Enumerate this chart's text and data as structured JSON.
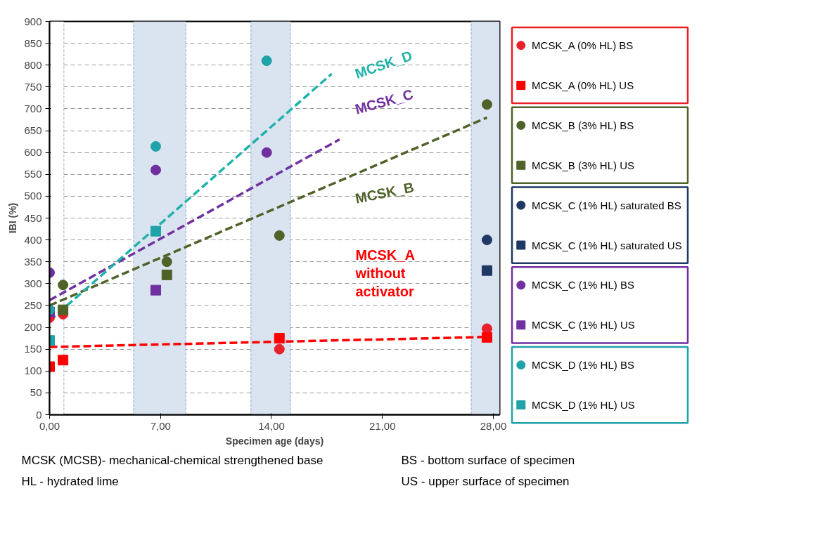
{
  "chart_data": {
    "type": "scatter",
    "xlabel": "Specimen age (days)",
    "ylabel": "IBI (%)",
    "xlim": [
      0,
      28.4
    ],
    "ylim": [
      0,
      900
    ],
    "xticks": [
      {
        "value": 0,
        "label": "0,00"
      },
      {
        "value": 7,
        "label": "7,00"
      },
      {
        "value": 14,
        "label": "14,00"
      },
      {
        "value": 21,
        "label": "21,00"
      },
      {
        "value": 28,
        "label": "28,00"
      }
    ],
    "yticks": [
      0,
      50,
      100,
      150,
      200,
      250,
      300,
      350,
      400,
      450,
      500,
      550,
      600,
      650,
      700,
      750,
      800,
      850,
      900
    ],
    "grid": "y",
    "legend": "right",
    "bands": [
      {
        "axis": "x",
        "from": 0,
        "to": 0.9,
        "label": null,
        "color": "#ffffff"
      },
      {
        "axis": "x",
        "from": 5.3,
        "to": 8.6,
        "label": null,
        "color": "#dae3f0"
      },
      {
        "axis": "x",
        "from": 12.7,
        "to": 15.2,
        "label": null,
        "color": "#dae3f0"
      },
      {
        "axis": "x",
        "from": 26.6,
        "to": 28.4,
        "label": null,
        "color": "#dae3f0"
      }
    ],
    "series": [
      {
        "type": "line",
        "color": "#ff0000",
        "line_style": "dashed",
        "x": [
          0,
          27.6
        ],
        "values": [
          155,
          178
        ]
      },
      {
        "type": "line",
        "color": "#4f6228",
        "line_style": "dashed",
        "x": [
          0,
          27.6
        ],
        "values": [
          250,
          680
        ]
      },
      {
        "type": "line",
        "color": "#7030a0",
        "line_style": "dashed",
        "x": [
          0,
          18.3
        ],
        "values": [
          262,
          630
        ]
      },
      {
        "type": "line",
        "color": "#20b2aa",
        "line_style": "dashed",
        "x": [
          0,
          17.8
        ],
        "values": [
          215,
          780
        ]
      },
      {
        "name": "MCSK_A (0% HL) BS",
        "color": "#e8202a",
        "marker": "circle",
        "x": [
          0,
          0.85,
          14.5,
          27.6
        ],
        "values": [
          222,
          230,
          150,
          197
        ]
      },
      {
        "name": "MCSK_A (0% HL) US",
        "color": "#ff0000",
        "marker": "square",
        "x": [
          0,
          0.85,
          14.5,
          27.6
        ],
        "values": [
          110,
          125,
          175,
          177
        ]
      },
      {
        "name": "MCSK_B (3% HL) BS",
        "color": "#4f6228",
        "marker": "circle",
        "x": [
          0.85,
          7.4,
          14.5,
          27.6
        ],
        "values": [
          297,
          350,
          410,
          710
        ]
      },
      {
        "name": "MCSK_B (3% HL) US",
        "color": "#4f6228",
        "marker": "square",
        "x": [
          0.85,
          7.4
        ],
        "values": [
          240,
          320
        ]
      },
      {
        "name": "MCSK_C (1% HL) saturated BS",
        "color": "#1f3864",
        "marker": "circle",
        "x": [
          27.6
        ],
        "values": [
          400
        ]
      },
      {
        "name": "MCSK_C (1% HL) saturated US",
        "color": "#1f3864",
        "marker": "square",
        "x": [
          27.6
        ],
        "values": [
          330
        ]
      },
      {
        "name": "MCSK_C (1% HL) BS",
        "color": "#7030a0",
        "marker": "circle",
        "x": [
          0,
          6.7,
          13.7
        ],
        "values": [
          325,
          560,
          600
        ]
      },
      {
        "name": "MCSK_C (1% HL) US",
        "color": "#7030a0",
        "marker": "square",
        "x": [
          0,
          6.7
        ],
        "values": [
          235,
          285
        ]
      },
      {
        "name": "MCSK_D (1% HL) BS",
        "color": "#1fa2a8",
        "marker": "circle",
        "x": [
          0,
          6.7,
          13.7
        ],
        "values": [
          240,
          614,
          810
        ]
      },
      {
        "name": "MCSK_D (1% HL) US",
        "color": "#1fa2a8",
        "marker": "square",
        "x": [
          0,
          6.7
        ],
        "values": [
          170,
          420
        ]
      }
    ],
    "annotations": [
      "MCSK_D",
      "MCSK_C",
      "MCSK_B",
      "MCSK_A without activator",
      "MCSK (MCSB)- mechanical-chemical strengthened base",
      "BS - bottom surface of specimen",
      "HL - hydrated lime",
      "US - upper surface of specimen"
    ]
  }
}
